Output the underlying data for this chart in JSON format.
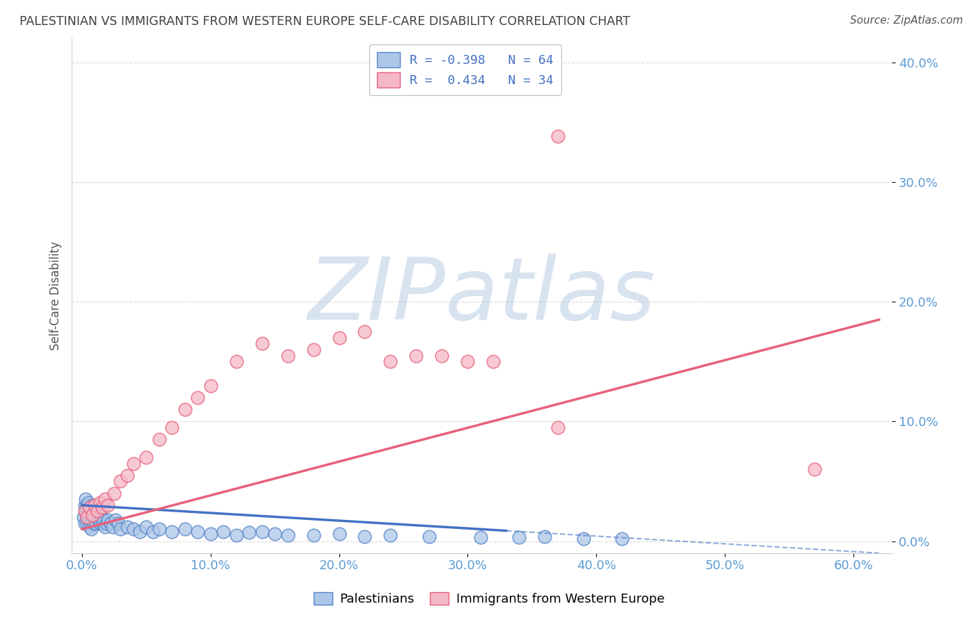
{
  "title": "PALESTINIAN VS IMMIGRANTS FROM WESTERN EUROPE SELF-CARE DISABILITY CORRELATION CHART",
  "source": "Source: ZipAtlas.com",
  "ylabel_label": "Self-Care Disability",
  "xlim": [
    -0.008,
    0.63
  ],
  "ylim": [
    -0.01,
    0.42
  ],
  "blue_R": -0.398,
  "blue_N": 64,
  "pink_R": 0.434,
  "pink_N": 34,
  "blue_color": "#adc6e8",
  "pink_color": "#f5b8c8",
  "blue_edge_color": "#5585c8",
  "pink_edge_color": "#e8607a",
  "blue_line_color": "#4472c4",
  "pink_line_color": "#e8607a",
  "tick_color": "#5b9bd5",
  "grid_color": "#d0d0d0",
  "title_color": "#404040",
  "watermark": "ZIPatlas",
  "watermark_color_zip": "#b8cce4",
  "watermark_color_atlas": "#c8daf0",
  "legend_label_1": "R = -0.398   N = 64",
  "legend_label_2": "R =  0.434   N = 34",
  "bottom_legend": [
    "Palestinians",
    "Immigrants from Western Europe"
  ],
  "blue_x": [
    0.001,
    0.002,
    0.002,
    0.003,
    0.003,
    0.004,
    0.004,
    0.004,
    0.005,
    0.005,
    0.005,
    0.006,
    0.006,
    0.006,
    0.007,
    0.007,
    0.007,
    0.008,
    0.008,
    0.009,
    0.009,
    0.01,
    0.01,
    0.011,
    0.012,
    0.013,
    0.014,
    0.015,
    0.016,
    0.017,
    0.018,
    0.019,
    0.02,
    0.022,
    0.024,
    0.026,
    0.028,
    0.03,
    0.035,
    0.04,
    0.045,
    0.05,
    0.055,
    0.06,
    0.07,
    0.08,
    0.09,
    0.1,
    0.11,
    0.12,
    0.13,
    0.14,
    0.15,
    0.16,
    0.18,
    0.2,
    0.22,
    0.24,
    0.27,
    0.31,
    0.34,
    0.36,
    0.39,
    0.42
  ],
  "blue_y": [
    0.02,
    0.03,
    0.015,
    0.025,
    0.035,
    0.02,
    0.03,
    0.015,
    0.025,
    0.018,
    0.032,
    0.022,
    0.028,
    0.012,
    0.018,
    0.025,
    0.01,
    0.02,
    0.03,
    0.015,
    0.025,
    0.018,
    0.022,
    0.015,
    0.02,
    0.018,
    0.015,
    0.02,
    0.015,
    0.018,
    0.012,
    0.015,
    0.018,
    0.015,
    0.012,
    0.018,
    0.015,
    0.01,
    0.012,
    0.01,
    0.008,
    0.012,
    0.008,
    0.01,
    0.008,
    0.01,
    0.008,
    0.006,
    0.008,
    0.005,
    0.007,
    0.008,
    0.006,
    0.005,
    0.005,
    0.006,
    0.004,
    0.005,
    0.004,
    0.003,
    0.003,
    0.004,
    0.002,
    0.002
  ],
  "pink_x": [
    0.002,
    0.004,
    0.006,
    0.008,
    0.01,
    0.012,
    0.014,
    0.016,
    0.018,
    0.02,
    0.025,
    0.03,
    0.035,
    0.04,
    0.05,
    0.06,
    0.07,
    0.08,
    0.09,
    0.1,
    0.12,
    0.14,
    0.16,
    0.18,
    0.2,
    0.22,
    0.24,
    0.26,
    0.28,
    0.3,
    0.32,
    0.37,
    0.37,
    0.57
  ],
  "pink_y": [
    0.025,
    0.02,
    0.028,
    0.022,
    0.03,
    0.025,
    0.032,
    0.028,
    0.035,
    0.03,
    0.04,
    0.05,
    0.055,
    0.065,
    0.07,
    0.085,
    0.095,
    0.11,
    0.12,
    0.13,
    0.15,
    0.165,
    0.155,
    0.16,
    0.17,
    0.175,
    0.15,
    0.155,
    0.155,
    0.15,
    0.15,
    0.338,
    0.095,
    0.06
  ],
  "blue_trend_x": [
    0.0,
    0.62
  ],
  "blue_trend_y": [
    0.03,
    -0.01
  ],
  "blue_trend_solid_end": 0.33,
  "pink_trend_x": [
    0.0,
    0.62
  ],
  "pink_trend_y": [
    0.01,
    0.185
  ]
}
